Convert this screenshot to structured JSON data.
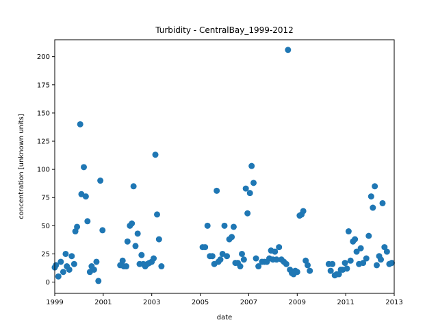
{
  "chart_data": {
    "type": "scatter",
    "title": "Turbidity - CentralBay_1999-2012",
    "xlabel": "date",
    "ylabel": "concentration [unknown units]",
    "xlim": [
      1999,
      2013
    ],
    "ylim": [
      -10,
      215
    ],
    "x_ticks": [
      1999,
      2001,
      2003,
      2005,
      2007,
      2009,
      2011,
      2013
    ],
    "x_tick_labels": [
      "1999",
      "2001",
      "2003",
      "2005",
      "2007",
      "2009",
      "2011",
      "2013"
    ],
    "y_ticks": [
      0,
      25,
      50,
      75,
      100,
      125,
      150,
      175,
      200
    ],
    "y_tick_labels": [
      "0",
      "25",
      "50",
      "75",
      "100",
      "125",
      "150",
      "175",
      "200"
    ],
    "grid": false,
    "marker_color": "#1f77b4",
    "series": [
      {
        "name": "Turbidity",
        "points": [
          [
            1999.0,
            13
          ],
          [
            1999.05,
            15
          ],
          [
            1999.15,
            5
          ],
          [
            1999.25,
            18
          ],
          [
            1999.35,
            9
          ],
          [
            1999.45,
            25
          ],
          [
            1999.5,
            14
          ],
          [
            1999.6,
            11
          ],
          [
            1999.7,
            23
          ],
          [
            1999.8,
            16
          ],
          [
            1999.85,
            45
          ],
          [
            1999.92,
            49
          ],
          [
            2000.05,
            140
          ],
          [
            2000.1,
            78
          ],
          [
            2000.2,
            102
          ],
          [
            2000.28,
            76
          ],
          [
            2000.35,
            54
          ],
          [
            2000.45,
            9
          ],
          [
            2000.52,
            14
          ],
          [
            2000.62,
            11
          ],
          [
            2000.72,
            18
          ],
          [
            2000.8,
            1
          ],
          [
            2000.88,
            90
          ],
          [
            2000.97,
            46
          ],
          [
            2001.7,
            15
          ],
          [
            2001.8,
            19
          ],
          [
            2001.85,
            14
          ],
          [
            2001.95,
            14
          ],
          [
            2002.0,
            36
          ],
          [
            2002.1,
            50
          ],
          [
            2002.18,
            52
          ],
          [
            2002.25,
            85
          ],
          [
            2002.33,
            32
          ],
          [
            2002.42,
            43
          ],
          [
            2002.5,
            16
          ],
          [
            2002.58,
            24
          ],
          [
            2002.65,
            16
          ],
          [
            2002.73,
            14
          ],
          [
            2002.82,
            16
          ],
          [
            2002.9,
            17
          ],
          [
            2003.0,
            18
          ],
          [
            2003.08,
            21
          ],
          [
            2003.15,
            113
          ],
          [
            2003.22,
            60
          ],
          [
            2003.3,
            38
          ],
          [
            2003.4,
            14
          ],
          [
            2005.1,
            31
          ],
          [
            2005.2,
            31
          ],
          [
            2005.3,
            50
          ],
          [
            2005.4,
            23
          ],
          [
            2005.5,
            23
          ],
          [
            2005.58,
            16
          ],
          [
            2005.68,
            81
          ],
          [
            2005.75,
            18
          ],
          [
            2005.83,
            20
          ],
          [
            2005.92,
            25
          ],
          [
            2006.0,
            50
          ],
          [
            2006.1,
            23
          ],
          [
            2006.2,
            38
          ],
          [
            2006.3,
            40
          ],
          [
            2006.38,
            49
          ],
          [
            2006.45,
            17
          ],
          [
            2006.55,
            17
          ],
          [
            2006.65,
            14
          ],
          [
            2006.72,
            25
          ],
          [
            2006.8,
            20
          ],
          [
            2006.88,
            83
          ],
          [
            2006.95,
            61
          ],
          [
            2007.05,
            79
          ],
          [
            2007.12,
            103
          ],
          [
            2007.2,
            88
          ],
          [
            2007.3,
            21
          ],
          [
            2007.4,
            14
          ],
          [
            2007.55,
            18
          ],
          [
            2007.65,
            18
          ],
          [
            2007.75,
            18
          ],
          [
            2007.85,
            21
          ],
          [
            2007.92,
            28
          ],
          [
            2008.0,
            20
          ],
          [
            2008.08,
            27
          ],
          [
            2008.15,
            20
          ],
          [
            2008.25,
            31
          ],
          [
            2008.35,
            20
          ],
          [
            2008.45,
            18
          ],
          [
            2008.55,
            16
          ],
          [
            2008.62,
            206
          ],
          [
            2008.7,
            11
          ],
          [
            2008.78,
            8
          ],
          [
            2008.85,
            7
          ],
          [
            2008.92,
            10
          ],
          [
            2009.0,
            9
          ],
          [
            2009.1,
            59
          ],
          [
            2009.18,
            60
          ],
          [
            2009.25,
            63
          ],
          [
            2009.35,
            19
          ],
          [
            2009.43,
            15
          ],
          [
            2009.52,
            10
          ],
          [
            2010.3,
            16
          ],
          [
            2010.38,
            10
          ],
          [
            2010.45,
            16
          ],
          [
            2010.55,
            6
          ],
          [
            2010.63,
            7
          ],
          [
            2010.72,
            7
          ],
          [
            2010.8,
            11
          ],
          [
            2010.88,
            11
          ],
          [
            2010.97,
            17
          ],
          [
            2011.05,
            12
          ],
          [
            2011.12,
            45
          ],
          [
            2011.2,
            19
          ],
          [
            2011.3,
            36
          ],
          [
            2011.38,
            38
          ],
          [
            2011.45,
            27
          ],
          [
            2011.55,
            16
          ],
          [
            2011.62,
            30
          ],
          [
            2011.72,
            17
          ],
          [
            2011.85,
            21
          ],
          [
            2011.95,
            41
          ],
          [
            2012.05,
            76
          ],
          [
            2012.12,
            66
          ],
          [
            2012.2,
            85
          ],
          [
            2012.28,
            15
          ],
          [
            2012.38,
            23
          ],
          [
            2012.45,
            20
          ],
          [
            2012.52,
            70
          ],
          [
            2012.6,
            31
          ],
          [
            2012.7,
            27
          ],
          [
            2012.8,
            16
          ],
          [
            2012.9,
            17
          ]
        ]
      }
    ]
  }
}
